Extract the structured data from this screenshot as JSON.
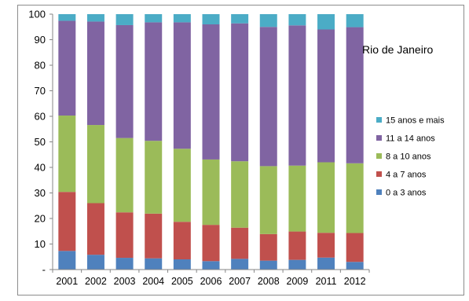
{
  "chart_data": {
    "type": "bar",
    "stacked": true,
    "title": "Rio de Janeiro",
    "categories": [
      "2001",
      "2002",
      "2003",
      "2004",
      "2005",
      "2006",
      "2007",
      "2008",
      "2009",
      "2011",
      "2012"
    ],
    "y_ticks": [
      "-",
      "10",
      "20",
      "30",
      "40",
      "50",
      "60",
      "70",
      "80",
      "90",
      "100"
    ],
    "ylim": [
      0,
      100
    ],
    "grid": false,
    "legend_position": "right",
    "series": [
      {
        "name": "0 a 3 anos",
        "color": "#4f81bd",
        "values": [
          7.3,
          5.8,
          4.6,
          4.4,
          4.0,
          3.3,
          4.2,
          3.5,
          3.8,
          4.7,
          3.0
        ]
      },
      {
        "name": "4 a 7 anos",
        "color": "#c0504d",
        "values": [
          23.1,
          20.2,
          17.8,
          17.5,
          14.7,
          14.2,
          12.2,
          10.4,
          11.1,
          9.7,
          11.3
        ]
      },
      {
        "name": "8 a 10 anos",
        "color": "#9bbb59",
        "values": [
          29.9,
          30.6,
          29.1,
          28.5,
          28.6,
          25.6,
          26.0,
          26.6,
          25.8,
          27.6,
          27.3
        ]
      },
      {
        "name": "11 a 14 anos",
        "color": "#8064a2",
        "values": [
          37.1,
          40.5,
          44.2,
          46.4,
          49.5,
          52.9,
          54.0,
          54.5,
          54.9,
          52.0,
          53.3
        ]
      },
      {
        "name": "15 anos e mais",
        "color": "#4bacc6",
        "values": [
          2.6,
          2.9,
          4.3,
          3.2,
          3.2,
          4.0,
          3.6,
          5.0,
          4.4,
          6.0,
          5.1
        ]
      }
    ]
  }
}
